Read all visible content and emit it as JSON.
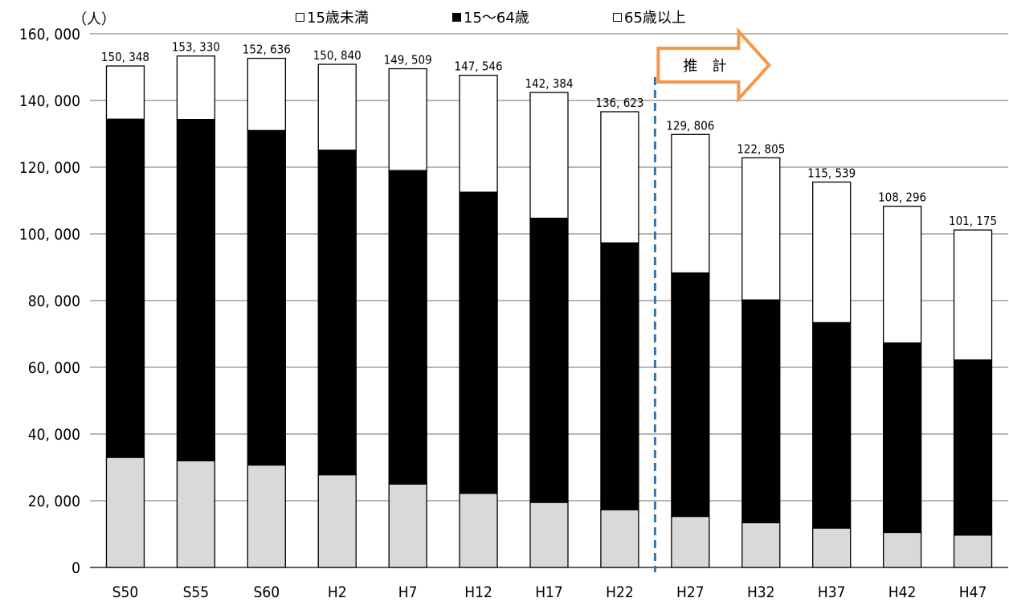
{
  "chart_data": {
    "type": "bar",
    "stacked": true,
    "unit_label": "（人）",
    "categories": [
      "S50",
      "S55",
      "S60",
      "H2",
      "H7",
      "H12",
      "H17",
      "H22",
      "H27",
      "H32",
      "H37",
      "H42",
      "H47"
    ],
    "series": [
      {
        "name": "15歳未満",
        "color": "#d9d9d9",
        "values": [
          33000,
          32000,
          30700,
          27800,
          25000,
          22200,
          19500,
          17300,
          15300,
          13400,
          11800,
          10500,
          9700
        ]
      },
      {
        "name": "15～64歳",
        "color": "#000000",
        "values": [
          101400,
          102300,
          100300,
          97300,
          94000,
          90300,
          85200,
          80000,
          73000,
          66800,
          61600,
          56800,
          52500
        ]
      },
      {
        "name": "65歳以上",
        "color": "#ffffff",
        "values": [
          15948,
          19030,
          21636,
          25740,
          30509,
          35046,
          37684,
          39323,
          41506,
          42605,
          42139,
          40996,
          38975
        ]
      }
    ],
    "totals": [
      150348,
      153330,
      152636,
      150840,
      149509,
      147546,
      142384,
      136623,
      129806,
      122805,
      115539,
      108296,
      101175
    ],
    "total_labels": [
      "150, 348",
      "153, 330",
      "152, 636",
      "150, 840",
      "149, 509",
      "147, 546",
      "142, 384",
      "136, 623",
      "129, 806",
      "122, 805",
      "115, 539",
      "108, 296",
      "101, 175"
    ],
    "ylim": [
      0,
      160000
    ],
    "yticks": [
      0,
      20000,
      40000,
      60000,
      80000,
      100000,
      120000,
      140000,
      160000
    ],
    "ytick_labels": [
      "0",
      "20, 000",
      "40, 000",
      "60, 000",
      "80, 000",
      "100, 000",
      "120, 000",
      "140, 000",
      "160, 000"
    ],
    "grid": true,
    "legend_position": "top",
    "annotation": {
      "text": "推　計",
      "color": "#f79646",
      "starts_after_category": "H22"
    },
    "divider_color": "#2e75b6"
  }
}
